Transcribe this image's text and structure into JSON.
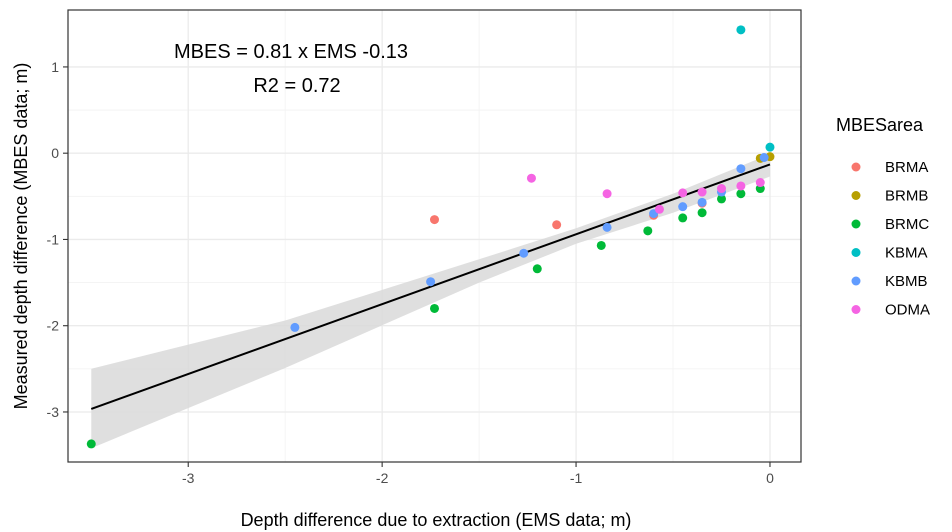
{
  "chart_data": {
    "type": "scatter",
    "xlabel": "Depth difference due to extraction (EMS data; m)",
    "ylabel": "Measured depth difference (MBES data; m)",
    "xlim": [
      -3.62,
      0.16
    ],
    "ylim": [
      -3.58,
      1.66
    ],
    "xticks": [
      -3,
      -2,
      -1,
      0
    ],
    "yticks": [
      -3,
      -2,
      -1,
      0,
      1
    ],
    "grid": true,
    "annotations": [
      "MBES = 0.81 x EMS -0.13",
      "R2 = 0.72"
    ],
    "legend": {
      "title": "MBESarea",
      "position": "right"
    },
    "series": [
      {
        "name": "BRMA",
        "color": "#F8766D",
        "points": [
          [
            -1.73,
            -0.77
          ],
          [
            -1.1,
            -0.83
          ],
          [
            -0.6,
            -0.72
          ],
          [
            -0.35,
            -0.58
          ]
        ]
      },
      {
        "name": "BRMB",
        "color": "#B79F00",
        "points": [
          [
            0.0,
            -0.04
          ],
          [
            -0.05,
            -0.06
          ]
        ]
      },
      {
        "name": "BRMC",
        "color": "#00BA38",
        "points": [
          [
            -3.5,
            -3.37
          ],
          [
            -1.73,
            -1.8
          ],
          [
            -1.2,
            -1.34
          ],
          [
            -0.87,
            -1.07
          ],
          [
            -0.63,
            -0.9
          ],
          [
            -0.45,
            -0.75
          ],
          [
            -0.35,
            -0.69
          ],
          [
            -0.25,
            -0.53
          ],
          [
            -0.15,
            -0.47
          ],
          [
            -0.05,
            -0.41
          ]
        ]
      },
      {
        "name": "KBMA",
        "color": "#00BFC4",
        "points": [
          [
            -0.15,
            1.43
          ],
          [
            0.0,
            0.07
          ]
        ]
      },
      {
        "name": "KBMB",
        "color": "#619CFF",
        "points": [
          [
            -2.45,
            -2.02
          ],
          [
            -1.75,
            -1.49
          ],
          [
            -1.27,
            -1.16
          ],
          [
            -0.84,
            -0.86
          ],
          [
            -0.6,
            -0.7
          ],
          [
            -0.45,
            -0.62
          ],
          [
            -0.35,
            -0.57
          ],
          [
            -0.25,
            -0.45
          ],
          [
            -0.15,
            -0.18
          ],
          [
            -0.03,
            -0.05
          ]
        ]
      },
      {
        "name": "ODMA",
        "color": "#F564E3",
        "points": [
          [
            -1.23,
            -0.29
          ],
          [
            -0.84,
            -0.47
          ],
          [
            -0.57,
            -0.65
          ],
          [
            -0.45,
            -0.46
          ],
          [
            -0.35,
            -0.45
          ],
          [
            -0.25,
            -0.41
          ],
          [
            -0.15,
            -0.38
          ],
          [
            -0.05,
            -0.34
          ]
        ]
      }
    ],
    "fit_line": {
      "slope": 0.81,
      "intercept": -0.13,
      "x_range": [
        -3.5,
        0.0
      ],
      "color": "#000000"
    },
    "confidence_band": {
      "color": "#D9D9D9",
      "x": [
        -3.5,
        -2.5,
        -1.5,
        -1.0,
        -0.5,
        0.0
      ],
      "upper": [
        -2.5,
        -1.94,
        -1.23,
        -0.87,
        -0.47,
        -0.01
      ],
      "lower": [
        -3.42,
        -2.49,
        -1.5,
        -1.05,
        -0.69,
        -0.27
      ]
    }
  }
}
